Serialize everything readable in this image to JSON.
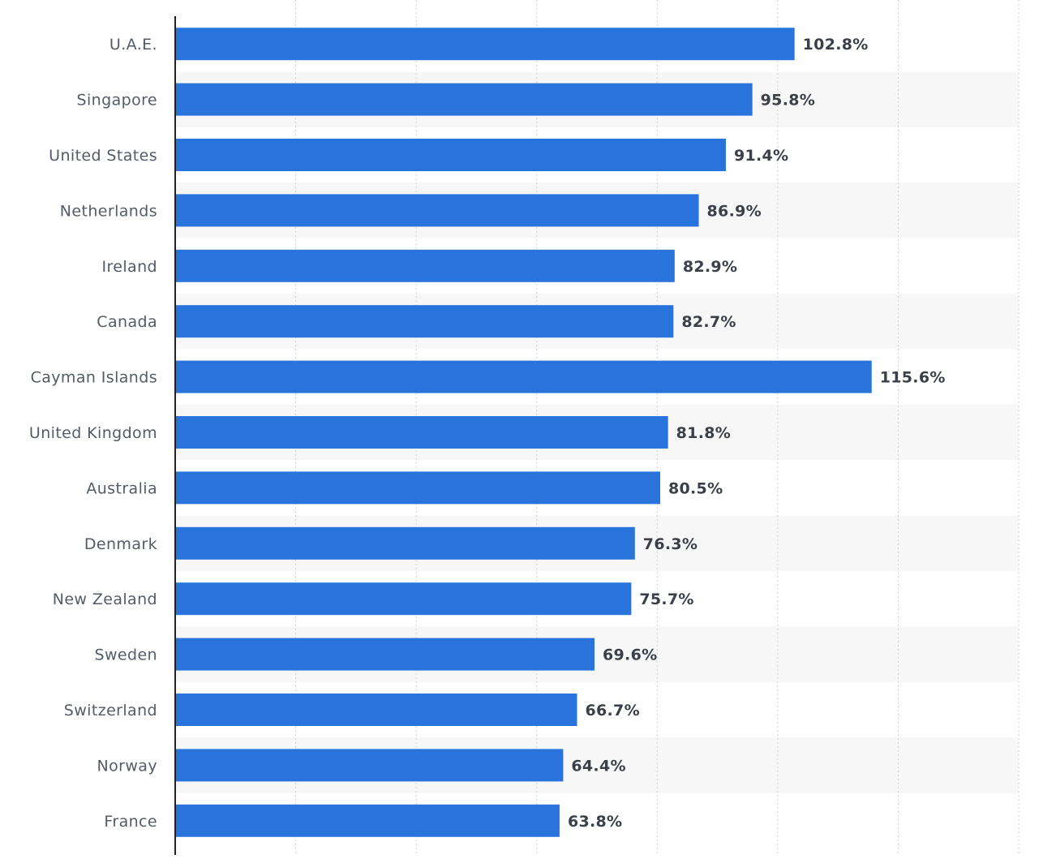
{
  "chart_data": {
    "type": "bar",
    "orientation": "horizontal",
    "categories": [
      "U.A.E.",
      "Singapore",
      "United States",
      "Netherlands",
      "Ireland",
      "Canada",
      "Cayman Islands",
      "United Kingdom",
      "Australia",
      "Denmark",
      "New Zealand",
      "Sweden",
      "Switzerland",
      "Norway",
      "France"
    ],
    "values": [
      102.8,
      95.8,
      91.4,
      86.9,
      82.9,
      82.7,
      115.6,
      81.8,
      80.5,
      76.3,
      75.7,
      69.6,
      66.7,
      64.4,
      63.8
    ],
    "value_labels": [
      "102.8%",
      "95.8%",
      "91.4%",
      "86.9%",
      "82.9%",
      "82.7%",
      "115.6%",
      "81.8%",
      "80.5%",
      "76.3%",
      "75.7%",
      "69.6%",
      "66.7%",
      "64.4%",
      "63.8%"
    ],
    "xlim": [
      0,
      140
    ],
    "grid": true,
    "colors": {
      "bar": "#2874dc",
      "band": "#f7f7f7",
      "grid": "#d0d0d0",
      "axis": "#222222"
    }
  }
}
